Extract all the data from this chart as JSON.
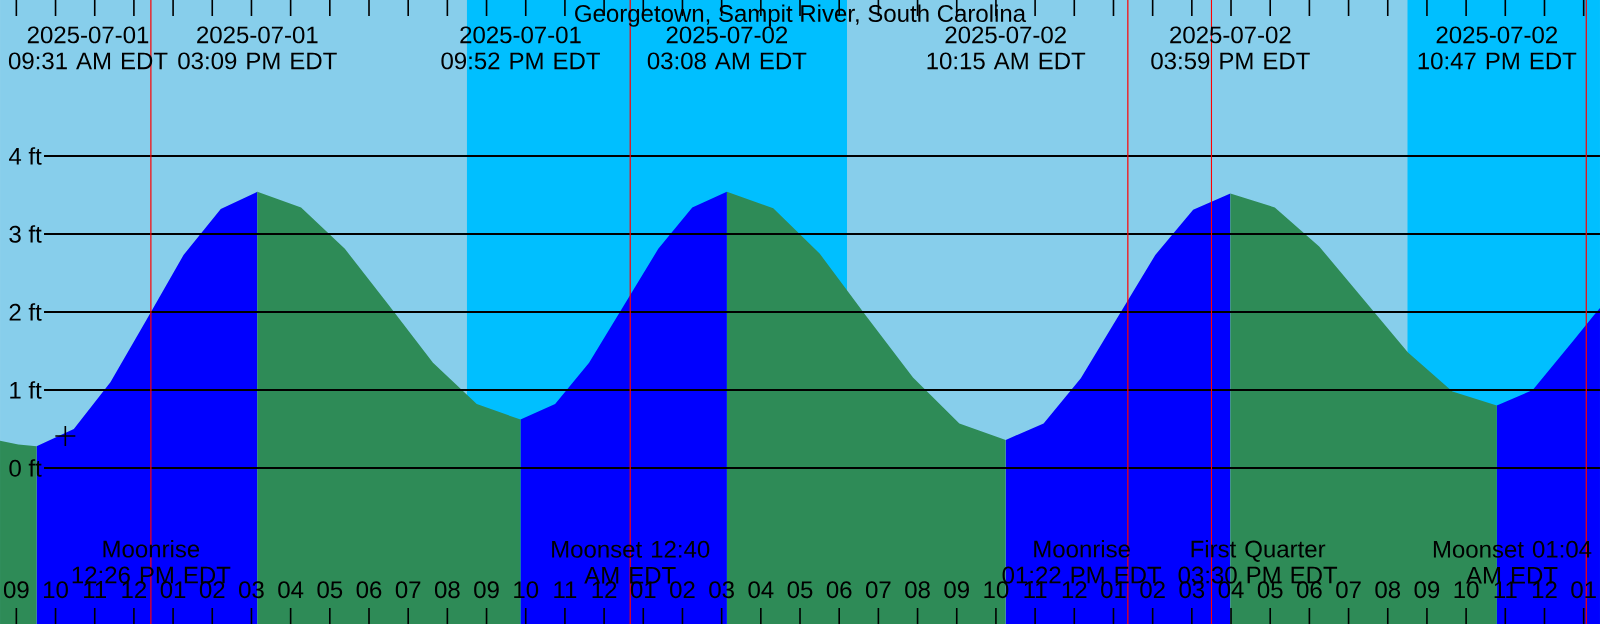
{
  "chart_data": {
    "type": "area",
    "title": "Georgetown, Sampit River, South Carolina",
    "x": [
      "2025-07-01T08:35",
      "2025-07-01T09:03",
      "2025-07-01T09:31",
      "2025-07-01T10:28",
      "2025-07-01T11:24",
      "2025-07-01T12:20",
      "2025-07-01T13:16",
      "2025-07-01T14:13",
      "2025-07-01T15:09",
      "2025-07-01T16:16",
      "2025-07-01T17:23",
      "2025-07-01T18:31",
      "2025-07-01T19:38",
      "2025-07-01T20:45",
      "2025-07-01T21:52",
      "2025-07-01T22:45",
      "2025-07-01T23:37",
      "2025-07-02T00:30",
      "2025-07-02T01:23",
      "2025-07-02T02:15",
      "2025-07-02T03:08",
      "2025-07-02T04:19",
      "2025-07-02T05:30",
      "2025-07-02T06:41",
      "2025-07-02T07:53",
      "2025-07-02T09:04",
      "2025-07-02T10:15",
      "2025-07-02T11:13",
      "2025-07-02T12:10",
      "2025-07-02T13:07",
      "2025-07-02T14:04",
      "2025-07-02T15:02",
      "2025-07-02T15:59",
      "2025-07-02T17:07",
      "2025-07-02T18:15",
      "2025-07-02T19:23",
      "2025-07-02T20:31",
      "2025-07-02T21:39",
      "2025-07-02T22:47",
      "2025-07-02T23:42",
      "2025-07-03T00:45",
      "2025-07-03T01:15",
      "2025-07-03T01:25"
    ],
    "series": [
      {
        "color": "#0000ff",
        "values": [
          null,
          null,
          0.28,
          0.5,
          1.1,
          1.91,
          2.73,
          3.32,
          3.54,
          null,
          null,
          null,
          null,
          null,
          0.62,
          0.82,
          1.35,
          2.08,
          2.81,
          3.34,
          3.54,
          null,
          null,
          null,
          null,
          null,
          0.36,
          0.57,
          1.15,
          1.94,
          2.73,
          3.31,
          3.52,
          null,
          null,
          null,
          null,
          null,
          0.8,
          1.0,
          1.64,
          1.95,
          2.05
        ]
      },
      {
        "color": "#2e8b57",
        "values": [
          0.35,
          0.3,
          0.28,
          null,
          null,
          null,
          null,
          null,
          3.54,
          3.34,
          2.81,
          2.08,
          1.35,
          0.82,
          0.62,
          null,
          null,
          null,
          null,
          null,
          3.54,
          3.33,
          2.75,
          1.95,
          1.16,
          0.57,
          0.36,
          null,
          null,
          null,
          null,
          null,
          3.52,
          3.34,
          2.84,
          2.16,
          1.48,
          0.98,
          0.8,
          null,
          null,
          null,
          null
        ]
      },
      {
        "type": "scatter",
        "color": "#000000",
        "marker": "cross",
        "x": [
          "2025-07-01T10:15"
        ],
        "values": [
          0.41
        ]
      }
    ],
    "xlim": [
      "2025-07-01T08:35",
      "2025-07-03T01:25"
    ],
    "ylim": [
      -2,
      6
    ],
    "xticks": [
      {
        "value": "2025-07-01T09:00",
        "label": "09"
      },
      {
        "value": "2025-07-01T10:00",
        "label": "10"
      },
      {
        "value": "2025-07-01T11:00",
        "label": "11"
      },
      {
        "value": "2025-07-01T12:00",
        "label": "12"
      },
      {
        "value": "2025-07-01T13:00",
        "label": "01"
      },
      {
        "value": "2025-07-01T14:00",
        "label": "02"
      },
      {
        "value": "2025-07-01T15:00",
        "label": "03"
      },
      {
        "value": "2025-07-01T16:00",
        "label": "04"
      },
      {
        "value": "2025-07-01T17:00",
        "label": "05"
      },
      {
        "value": "2025-07-01T18:00",
        "label": "06"
      },
      {
        "value": "2025-07-01T19:00",
        "label": "07"
      },
      {
        "value": "2025-07-01T20:00",
        "label": "08"
      },
      {
        "value": "2025-07-01T21:00",
        "label": "09"
      },
      {
        "value": "2025-07-01T22:00",
        "label": "10"
      },
      {
        "value": "2025-07-01T23:00",
        "label": "11"
      },
      {
        "value": "2025-07-02T00:00",
        "label": "12"
      },
      {
        "value": "2025-07-02T01:00",
        "label": "01"
      },
      {
        "value": "2025-07-02T02:00",
        "label": "02"
      },
      {
        "value": "2025-07-02T03:00",
        "label": "03"
      },
      {
        "value": "2025-07-02T04:00",
        "label": "04"
      },
      {
        "value": "2025-07-02T05:00",
        "label": "05"
      },
      {
        "value": "2025-07-02T06:00",
        "label": "06"
      },
      {
        "value": "2025-07-02T07:00",
        "label": "07"
      },
      {
        "value": "2025-07-02T08:00",
        "label": "08"
      },
      {
        "value": "2025-07-02T09:00",
        "label": "09"
      },
      {
        "value": "2025-07-02T10:00",
        "label": "10"
      },
      {
        "value": "2025-07-02T11:00",
        "label": "11"
      },
      {
        "value": "2025-07-02T12:00",
        "label": "12"
      },
      {
        "value": "2025-07-02T13:00",
        "label": "01"
      },
      {
        "value": "2025-07-02T14:00",
        "label": "02"
      },
      {
        "value": "2025-07-02T15:00",
        "label": "03"
      },
      {
        "value": "2025-07-02T16:00",
        "label": "04"
      },
      {
        "value": "2025-07-02T17:00",
        "label": "05"
      },
      {
        "value": "2025-07-02T18:00",
        "label": "06"
      },
      {
        "value": "2025-07-02T19:00",
        "label": "07"
      },
      {
        "value": "2025-07-02T20:00",
        "label": "08"
      },
      {
        "value": "2025-07-02T21:00",
        "label": "09"
      },
      {
        "value": "2025-07-02T22:00",
        "label": "10"
      },
      {
        "value": "2025-07-02T23:00",
        "label": "11"
      },
      {
        "value": "2025-07-03T00:00",
        "label": "12"
      },
      {
        "value": "2025-07-03T01:00",
        "label": "01"
      }
    ],
    "yticks": [
      {
        "value": 0,
        "label": "0 ft"
      },
      {
        "value": 1,
        "label": "1 ft"
      },
      {
        "value": 2,
        "label": "2 ft"
      },
      {
        "value": 3,
        "label": "3 ft"
      },
      {
        "value": 4,
        "label": "4 ft"
      }
    ],
    "grid": "y",
    "bands": [
      {
        "axis": "x",
        "from": "2025-07-01T20:30",
        "to": "2025-07-02T06:12",
        "color": "#00bfff"
      },
      {
        "axis": "x",
        "from": "2025-07-02T20:30",
        "to": "2025-07-03T01:25",
        "color": "#00bfff"
      }
    ],
    "ref_lines": [
      {
        "axis": "x",
        "value": "2025-07-01T12:26",
        "label": "Moonrise 12:26 PM EDT",
        "color": "#ff0000"
      },
      {
        "axis": "x",
        "value": "2025-07-02T00:40",
        "label": "Moonset 12:40 AM EDT",
        "color": "#ff0000"
      },
      {
        "axis": "x",
        "value": "2025-07-02T13:22",
        "label": "Moonrise 01:22 PM EDT",
        "color": "#ff0000"
      },
      {
        "axis": "x",
        "value": "2025-07-02T15:30",
        "label": "First Quarter 03:30 PM EDT",
        "color": "#ff0000"
      },
      {
        "axis": "x",
        "value": "2025-07-03T01:04",
        "label": "Moonset 01:04 AM EDT",
        "color": "#ff0000"
      }
    ],
    "annotations": [
      "2025-07-01 09:31 AM EDT",
      "2025-07-01 03:09 PM EDT",
      "2025-07-01 09:52 PM EDT",
      "2025-07-02 03:08 AM EDT",
      "2025-07-02 10:15 AM EDT",
      "2025-07-02 03:59 PM EDT",
      "2025-07-02 10:47 PM EDT"
    ]
  }
}
